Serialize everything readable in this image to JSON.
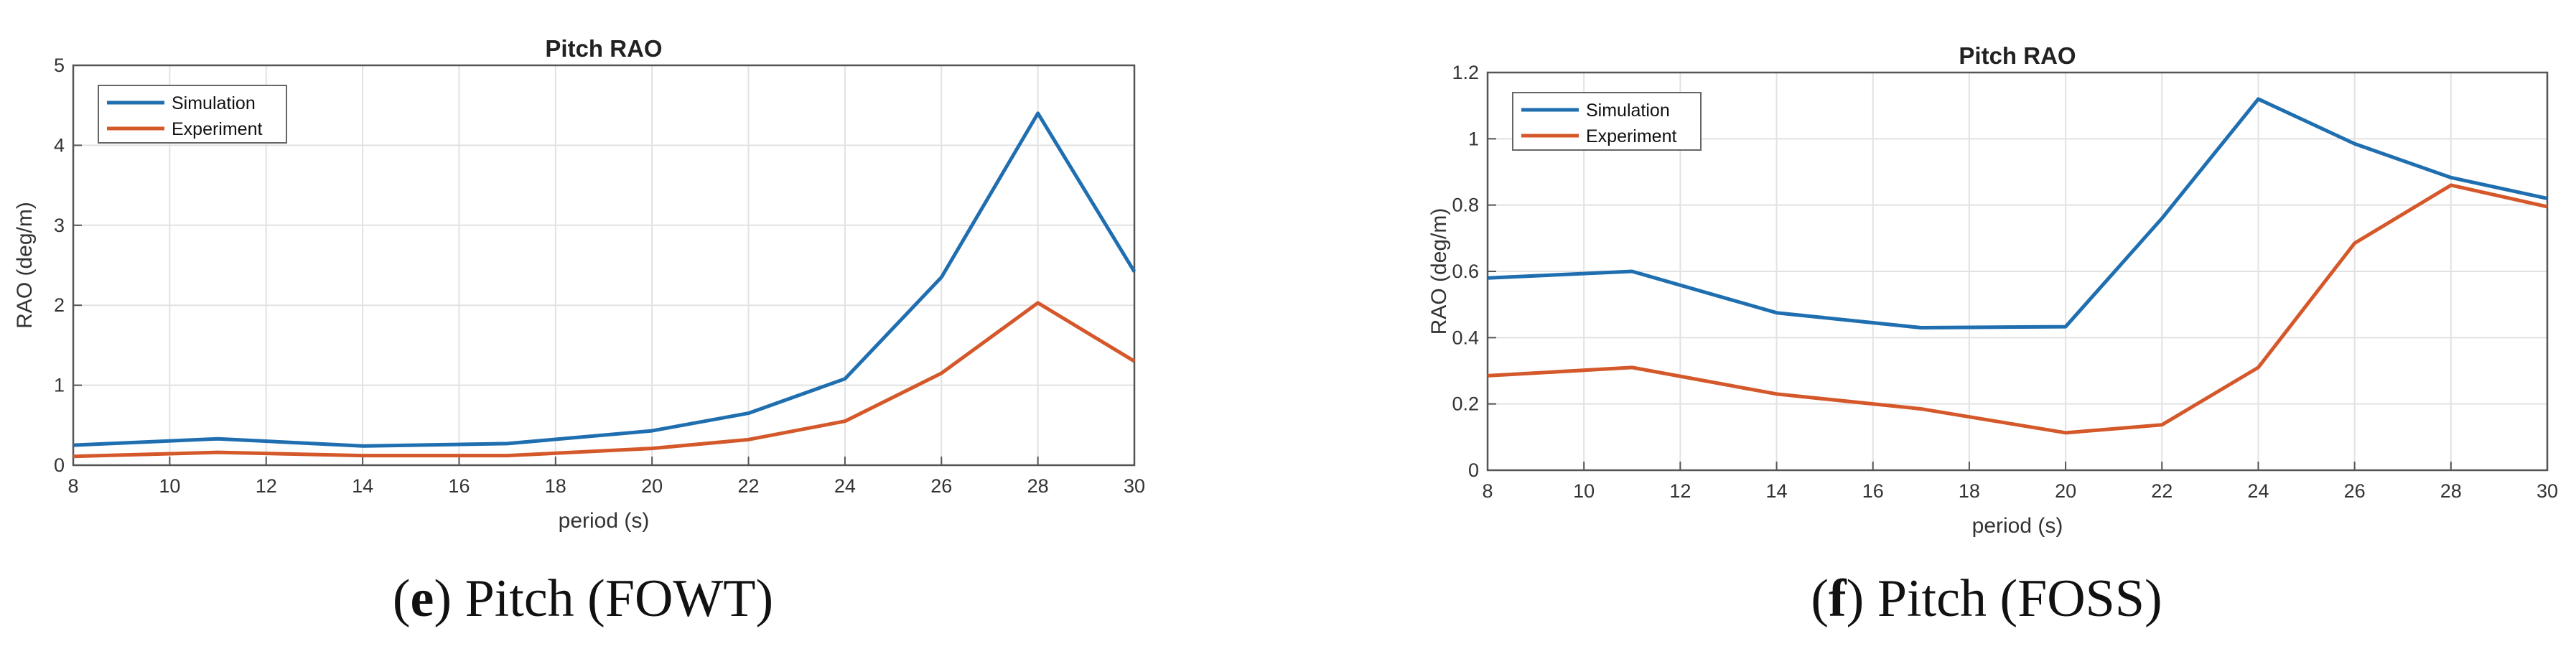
{
  "chart_data": [
    {
      "type": "line",
      "title": "Pitch RAO",
      "xlabel": "period (s)",
      "ylabel": "RAO (deg/m)",
      "xlim": [
        8,
        30
      ],
      "ylim": [
        0,
        5
      ],
      "xticks": [
        8,
        10,
        12,
        14,
        16,
        18,
        20,
        22,
        24,
        26,
        28,
        30
      ],
      "yticks": [
        0,
        1,
        2,
        3,
        4,
        5
      ],
      "yticklabels": [
        "0",
        "1",
        "2",
        "3",
        "4",
        "5"
      ],
      "grid": true,
      "legend": "top-left",
      "x": [
        8,
        11,
        14,
        17,
        20,
        22,
        24,
        26,
        28,
        30
      ],
      "series": [
        {
          "name": "Simulation",
          "color": "#1f6fb0",
          "values": [
            0.25,
            0.33,
            0.24,
            0.27,
            0.43,
            0.65,
            1.08,
            2.35,
            4.4,
            2.42
          ]
        },
        {
          "name": "Experiment",
          "color": "#d4582a",
          "values": [
            0.11,
            0.16,
            0.12,
            0.12,
            0.21,
            0.32,
            0.55,
            1.15,
            2.03,
            1.3
          ]
        }
      ],
      "caption": {
        "letter": "e",
        "text": " Pitch (FOWT)"
      }
    },
    {
      "type": "line",
      "title": "Pitch RAO",
      "xlabel": "period (s)",
      "ylabel": "RAO (deg/m)",
      "xlim": [
        8,
        30
      ],
      "ylim": [
        0,
        1.2
      ],
      "xticks": [
        8,
        10,
        12,
        14,
        16,
        18,
        20,
        22,
        24,
        26,
        28,
        30
      ],
      "yticks": [
        0,
        0.2,
        0.4,
        0.6,
        0.8,
        1,
        1.2
      ],
      "yticklabels": [
        "0",
        "0.2",
        "0.4",
        "0.6",
        "0.8",
        "1",
        "1.2"
      ],
      "grid": true,
      "legend": "top-left",
      "x": [
        8,
        11,
        14,
        17,
        20,
        22,
        24,
        26,
        28,
        30
      ],
      "series": [
        {
          "name": "Simulation",
          "color": "#1f6fb0",
          "values": [
            0.58,
            0.6,
            0.475,
            0.43,
            0.433,
            0.76,
            1.12,
            0.985,
            0.883,
            0.82
          ]
        },
        {
          "name": "Experiment",
          "color": "#d4582a",
          "values": [
            0.285,
            0.31,
            0.23,
            0.185,
            0.113,
            0.137,
            0.31,
            0.685,
            0.86,
            0.795
          ]
        }
      ],
      "caption": {
        "letter": "f",
        "text": " Pitch (FOSS)"
      }
    }
  ]
}
